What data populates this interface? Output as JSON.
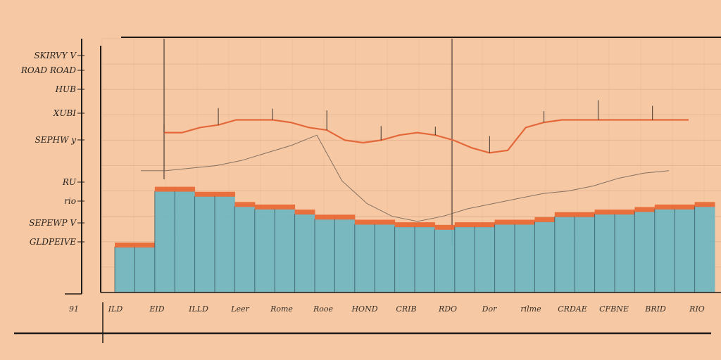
{
  "chart_data": {
    "type": "bar",
    "title": "",
    "xlabel": "",
    "ylabel": "",
    "grid": true,
    "legend": "none",
    "y_tick_labels": [
      "SKIRVY V",
      "ROAD ROAD",
      "HUB",
      "XUBI",
      "SEPHW y",
      "RU",
      "rio",
      "SEPEWP V",
      "GLDPEIVE"
    ],
    "x_tick_labels": [
      "91",
      "ILD",
      "EID",
      "ILLD",
      "Leer",
      "Rome",
      "Rooe",
      "HOND",
      "CRIB",
      "RDO",
      "Dor",
      "rilme",
      "CRDAE",
      "CFBNE",
      "BRID",
      "RIO"
    ],
    "ylim": [
      0,
      100
    ],
    "bar_values": [
      18,
      18,
      40,
      40,
      38,
      38,
      34,
      33,
      33,
      31,
      29,
      29,
      27,
      27,
      26,
      26,
      25,
      26,
      26,
      27,
      27,
      28,
      30,
      30,
      31,
      31,
      32,
      33,
      33,
      34
    ],
    "line_values": [
      63,
      63,
      65,
      66,
      68,
      68,
      68,
      67,
      65,
      64,
      60,
      59,
      60,
      62,
      63,
      62,
      60,
      57,
      55,
      56,
      65,
      67,
      68,
      68,
      68,
      68,
      68,
      68,
      68,
      68
    ],
    "trend_values": [
      48,
      48,
      49,
      50,
      52,
      55,
      58,
      62,
      44,
      35,
      30,
      28,
      30,
      33,
      35,
      37,
      39,
      40,
      42,
      45,
      47,
      48
    ],
    "colors": {
      "background": "#f6c9a4",
      "bar_fill": "#6fb6c2",
      "bar_cap": "#e86a38",
      "line": "#e4683a",
      "axis": "#1f1b18",
      "grid": "#dca88a"
    }
  }
}
